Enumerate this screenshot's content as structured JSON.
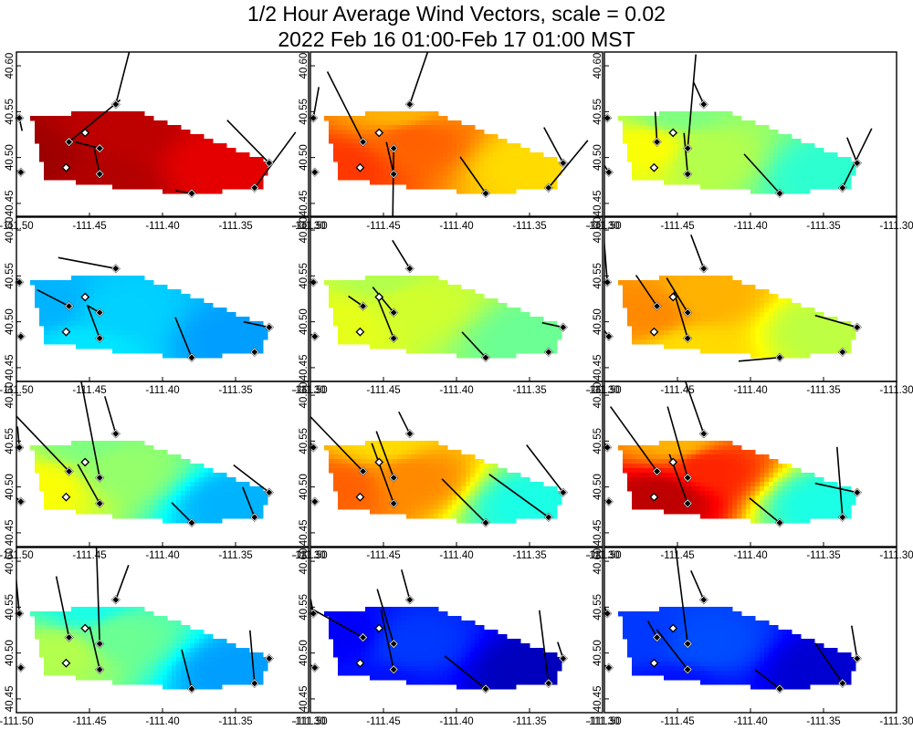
{
  "title": {
    "line1": "1/2 Hour Average Wind Vectors, scale =  0.02",
    "line2": "2022 Feb 16 01:00-Feb 17 01:00 MST"
  },
  "chart_data": {
    "type": "vector-field-map",
    "grid": {
      "rows": 4,
      "cols": 3
    },
    "x_ticks": [
      "-111.50",
      "-111.45",
      "-111.40",
      "-111.35",
      "-111.30"
    ],
    "y_ticks": [
      "40.45",
      "40.50",
      "40.55",
      "40.60"
    ],
    "x_range": [
      -111.5,
      -111.3
    ],
    "y_range": [
      40.435,
      40.615
    ],
    "basin_polygon": [
      [
        -111.49,
        40.545
      ],
      [
        -111.42,
        40.552
      ],
      [
        -111.4,
        40.54
      ],
      [
        -111.37,
        40.522
      ],
      [
        -111.345,
        40.505
      ],
      [
        -111.326,
        40.496
      ],
      [
        -111.332,
        40.468
      ],
      [
        -111.375,
        40.461
      ],
      [
        -111.42,
        40.465
      ],
      [
        -111.48,
        40.478
      ]
    ],
    "stations": [
      {
        "lon": -111.498,
        "lat": 40.543,
        "style": "filled"
      },
      {
        "lon": -111.464,
        "lat": 40.517,
        "style": "filled"
      },
      {
        "lon": -111.453,
        "lat": 40.527,
        "style": "open"
      },
      {
        "lon": -111.466,
        "lat": 40.489,
        "style": "open"
      },
      {
        "lon": -111.497,
        "lat": 40.484,
        "style": "filled"
      },
      {
        "lon": -111.443,
        "lat": 40.51,
        "style": "filled"
      },
      {
        "lon": -111.443,
        "lat": 40.482,
        "style": "filled"
      },
      {
        "lon": -111.432,
        "lat": 40.558,
        "style": "filled"
      },
      {
        "lon": -111.38,
        "lat": 40.461,
        "style": "filled"
      },
      {
        "lon": -111.337,
        "lat": 40.467,
        "style": "filled"
      },
      {
        "lon": -111.327,
        "lat": 40.494,
        "style": "filled"
      }
    ],
    "panels": [
      {
        "field": [
          [
            -111.49,
            40.5,
            0.97
          ],
          [
            -111.43,
            40.53,
            0.94
          ],
          [
            -111.36,
            40.49,
            0.9
          ],
          [
            -111.44,
            40.47,
            0.95
          ]
        ],
        "vectors": [
          [
            0,
            3,
            14
          ],
          [
            1,
            56,
            -46
          ],
          [
            4,
            -33,
            -11
          ],
          [
            5,
            -27,
            -7
          ],
          [
            6,
            -6,
            -28
          ],
          [
            7,
            18,
            -70
          ],
          [
            8,
            -18,
            -3
          ],
          [
            9,
            45,
            -61
          ],
          [
            10,
            -46,
            -47
          ]
        ]
      },
      {
        "field": [
          [
            -111.48,
            40.49,
            0.82
          ],
          [
            -111.43,
            40.52,
            0.78
          ],
          [
            -111.35,
            40.49,
            0.66
          ],
          [
            -111.44,
            40.55,
            0.7
          ]
        ],
        "vectors": [
          [
            0,
            6,
            -34
          ],
          [
            1,
            -39,
            -77
          ],
          [
            5,
            -1,
            75
          ],
          [
            6,
            -8,
            -35
          ],
          [
            7,
            24,
            -70
          ],
          [
            8,
            -28,
            -40
          ],
          [
            9,
            43,
            -52
          ],
          [
            10,
            -21,
            -39
          ]
        ]
      },
      {
        "field": [
          [
            -111.47,
            40.51,
            0.62
          ],
          [
            -111.43,
            40.5,
            0.55
          ],
          [
            -111.35,
            40.48,
            0.42
          ],
          [
            -111.45,
            40.55,
            0.5
          ]
        ],
        "vectors": [
          [
            0,
            -45,
            -40
          ],
          [
            1,
            -2,
            -33
          ],
          [
            4,
            -22,
            -34
          ],
          [
            5,
            9,
            -103
          ],
          [
            6,
            -4,
            -45
          ],
          [
            7,
            -11,
            -24
          ],
          [
            8,
            -39,
            -43
          ],
          [
            9,
            32,
            -65
          ],
          [
            10,
            -11,
            -28
          ]
        ]
      },
      {
        "field": [
          [
            -111.48,
            40.52,
            0.3
          ],
          [
            -111.43,
            40.51,
            0.33
          ],
          [
            -111.35,
            40.48,
            0.28
          ],
          [
            -111.45,
            40.47,
            0.35
          ]
        ],
        "vectors": [
          [
            0,
            -11,
            -16
          ],
          [
            1,
            -35,
            -18
          ],
          [
            5,
            -14,
            -8
          ],
          [
            6,
            -13,
            -35
          ],
          [
            7,
            -63,
            -12
          ],
          [
            8,
            -18,
            -44
          ],
          [
            10,
            -28,
            -6
          ]
        ]
      },
      {
        "field": [
          [
            -111.48,
            40.5,
            0.6
          ],
          [
            -111.43,
            40.52,
            0.58
          ],
          [
            -111.35,
            40.48,
            0.48
          ],
          [
            -111.45,
            40.55,
            0.55
          ]
        ],
        "vectors": [
          [
            0,
            -16,
            -14
          ],
          [
            1,
            -16,
            -11
          ],
          [
            4,
            -42,
            -20
          ],
          [
            5,
            -23,
            -28
          ],
          [
            6,
            -18,
            -45
          ],
          [
            7,
            -19,
            -31
          ],
          [
            8,
            -26,
            -28
          ],
          [
            10,
            -23,
            -5
          ]
        ]
      },
      {
        "field": [
          [
            -111.47,
            40.51,
            0.74
          ],
          [
            -111.43,
            40.53,
            0.7
          ],
          [
            -111.35,
            40.49,
            0.56
          ],
          [
            -111.44,
            40.47,
            0.66
          ]
        ],
        "vectors": [
          [
            0,
            -5,
            -64
          ],
          [
            1,
            -23,
            -34
          ],
          [
            4,
            -26,
            -34
          ],
          [
            5,
            -23,
            -38
          ],
          [
            6,
            -15,
            -51
          ],
          [
            7,
            -14,
            -37
          ],
          [
            8,
            -45,
            4
          ],
          [
            10,
            -46,
            -13
          ]
        ]
      },
      {
        "field": [
          [
            -111.48,
            40.5,
            0.62
          ],
          [
            -111.43,
            40.52,
            0.52
          ],
          [
            -111.35,
            40.48,
            0.3
          ],
          [
            -111.45,
            40.55,
            0.5
          ]
        ],
        "vectors": [
          [
            0,
            -2,
            -23
          ],
          [
            1,
            -83,
            -87
          ],
          [
            4,
            -36,
            -30
          ],
          [
            5,
            -24,
            -125
          ],
          [
            6,
            -24,
            -43
          ],
          [
            7,
            -12,
            -41
          ],
          [
            8,
            -22,
            -22
          ],
          [
            9,
            -13,
            -33
          ],
          [
            10,
            -39,
            -30
          ]
        ]
      },
      {
        "field": [
          [
            -111.48,
            40.5,
            0.78
          ],
          [
            -111.43,
            40.51,
            0.74
          ],
          [
            -111.35,
            40.48,
            0.4
          ],
          [
            -111.45,
            40.55,
            0.66
          ]
        ],
        "vectors": [
          [
            0,
            -34,
            -54
          ],
          [
            1,
            -78,
            -81
          ],
          [
            4,
            -68,
            -9
          ],
          [
            5,
            -19,
            -51
          ],
          [
            6,
            -24,
            -66
          ],
          [
            7,
            -12,
            -24
          ],
          [
            8,
            -48,
            -48
          ],
          [
            9,
            -65,
            -47
          ],
          [
            10,
            -40,
            -52
          ]
        ]
      },
      {
        "field": [
          [
            -111.46,
            40.49,
            0.94
          ],
          [
            -111.43,
            40.52,
            0.84
          ],
          [
            -111.35,
            40.48,
            0.4
          ],
          [
            -111.45,
            40.55,
            0.7
          ]
        ],
        "vectors": [
          [
            0,
            -22,
            -34
          ],
          [
            1,
            -51,
            -71
          ],
          [
            4,
            -71,
            -18
          ],
          [
            5,
            -22,
            -78
          ],
          [
            6,
            -20,
            -54
          ],
          [
            7,
            -22,
            -63
          ],
          [
            8,
            -33,
            -27
          ],
          [
            9,
            -6,
            -77
          ],
          [
            10,
            -46,
            -10
          ]
        ]
      },
      {
        "field": [
          [
            -111.47,
            40.5,
            0.55
          ],
          [
            -111.43,
            40.52,
            0.48
          ],
          [
            -111.35,
            40.48,
            0.28
          ],
          [
            -111.45,
            40.55,
            0.4
          ]
        ],
        "vectors": [
          [
            0,
            -5,
            -54
          ],
          [
            1,
            -14,
            -67
          ],
          [
            4,
            -46,
            -6
          ],
          [
            5,
            -4,
            -118
          ],
          [
            6,
            -11,
            -47
          ],
          [
            7,
            14,
            -38
          ],
          [
            8,
            -11,
            -43
          ],
          [
            9,
            -5,
            -58
          ]
        ]
      },
      {
        "field": [
          [
            -111.48,
            40.52,
            0.12
          ],
          [
            -111.43,
            40.51,
            0.18
          ],
          [
            -111.35,
            40.48,
            0.06
          ],
          [
            -111.45,
            40.46,
            0.14
          ]
        ],
        "vectors": [
          [
            0,
            -3,
            -16
          ],
          [
            1,
            -95,
            -53
          ],
          [
            4,
            -62,
            -38
          ],
          [
            5,
            -18,
            -60
          ],
          [
            6,
            -14,
            -66
          ],
          [
            7,
            -9,
            -33
          ],
          [
            8,
            -45,
            -36
          ],
          [
            9,
            -10,
            -80
          ],
          [
            10,
            -6,
            -18
          ]
        ]
      },
      {
        "field": [
          [
            -111.48,
            40.52,
            0.18
          ],
          [
            -111.43,
            40.51,
            0.2
          ],
          [
            -111.35,
            40.48,
            0.08
          ],
          [
            -111.45,
            40.46,
            0.14
          ]
        ],
        "vectors": [
          [
            0,
            -12,
            -27
          ],
          [
            1,
            -10,
            -18
          ],
          [
            4,
            -77,
            -41
          ],
          [
            5,
            -14,
            -111
          ],
          [
            6,
            -34,
            -44
          ],
          [
            7,
            -14,
            -32
          ],
          [
            8,
            -27,
            -21
          ],
          [
            9,
            -30,
            -44
          ],
          [
            10,
            -6,
            -36
          ]
        ]
      }
    ]
  }
}
